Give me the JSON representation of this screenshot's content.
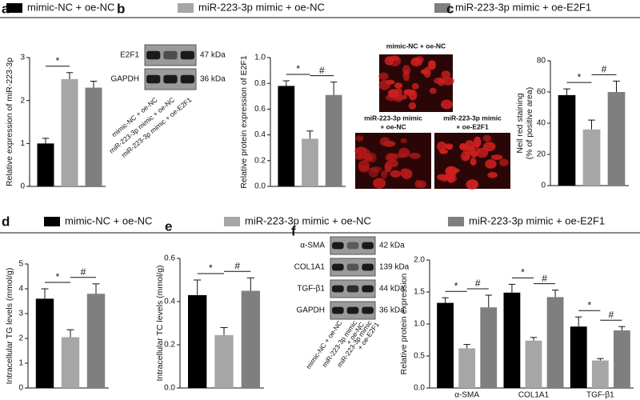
{
  "legends": [
    [
      {
        "name": "mimic-NC + oe-NC",
        "color": "#000000"
      },
      {
        "name": "miR-223-3p mimic + oe-NC",
        "color": "#a6a6a6"
      },
      {
        "name": "miR-223-3p mimic + oe-E2F1",
        "color": "#7f7f7f"
      }
    ],
    [
      {
        "name": "mimic-NC + oe-NC",
        "color": "#000000"
      },
      {
        "name": "miR-223-3p mimic + oe-NC",
        "color": "#a6a6a6"
      },
      {
        "name": "miR-223-3p mimic + oe-E2F1",
        "color": "#7f7f7f"
      }
    ]
  ],
  "blots": [
    {
      "panel": "b",
      "rows": [
        {
          "protein": "E2F1",
          "size": "47 kDa"
        },
        {
          "protein": "GAPDH",
          "size": "36 kDa"
        }
      ],
      "lanes": [
        [
          "mimic-NC + oe-NC"
        ],
        [
          "miR-223-3p mimic + oe-NC"
        ],
        [
          "miR-223-3p mimic + oe-E2F1"
        ]
      ]
    },
    {
      "panel": "f",
      "rows": [
        {
          "protein": "α-SMA",
          "size": "42 kDa"
        },
        {
          "protein": "COL1A1",
          "size": "139 kDa"
        },
        {
          "protein": "TGF-β1",
          "size": "44 kDa"
        },
        {
          "protein": "GAPDH",
          "size": "36 kDa"
        }
      ],
      "lanes": [
        [
          "mimic-NC + oe-NC"
        ],
        [
          "miR-223-3p mimic",
          "+ oe-NC"
        ],
        [
          "miR-223-3p mimic",
          "+ oe-E2F1"
        ]
      ]
    }
  ],
  "micrographs": {
    "panel": "c",
    "images": [
      {
        "caption": [
          "mimic-NC + oe-NC"
        ]
      },
      {
        "caption": [
          "miR-223-3p mimic",
          "+ oe-NC"
        ]
      },
      {
        "caption": [
          "miR-223-3p mimic",
          "+ oe-E2F1"
        ]
      }
    ]
  },
  "chart_data": [
    {
      "type": "bar",
      "panel": "a",
      "ylabel": [
        "Relative expression of miR-223-3p"
      ],
      "values": [
        1.0,
        2.5,
        2.3
      ],
      "errors": [
        0.12,
        0.15,
        0.15
      ],
      "colors": [
        "#000000",
        "#a6a6a6",
        "#7f7f7f"
      ],
      "ylim": [
        0,
        3
      ],
      "yticks": [
        0,
        1,
        2,
        3
      ],
      "annotations": [
        {
          "text": "*",
          "between": [
            0,
            1
          ]
        }
      ]
    },
    {
      "type": "bar",
      "ylabel": [
        "Relative protein expression of E2F1"
      ],
      "values": [
        0.78,
        0.37,
        0.71
      ],
      "errors": [
        0.04,
        0.06,
        0.1
      ],
      "colors": [
        "#000000",
        "#a6a6a6",
        "#7f7f7f"
      ],
      "ylim": [
        0,
        1
      ],
      "yticks": [
        {
          "value": 0,
          "label": "0.0"
        },
        0.2,
        0.4,
        0.6,
        0.8,
        {
          "value": 1,
          "label": "1.0"
        }
      ],
      "annotations": [
        {
          "text": "*",
          "between": [
            0,
            1
          ]
        },
        {
          "text": "#",
          "between": [
            1,
            2
          ]
        }
      ]
    },
    {
      "type": "bar",
      "ylabel": [
        "Neil red staining",
        "(% of positive area)"
      ],
      "values": [
        58,
        36,
        60
      ],
      "errors": [
        4,
        6,
        7
      ],
      "colors": [
        "#000000",
        "#a6a6a6",
        "#7f7f7f"
      ],
      "ylim": [
        0,
        80
      ],
      "yticks": [
        0,
        20,
        40,
        60,
        80
      ],
      "annotations": [
        {
          "text": "*",
          "between": [
            0,
            1
          ]
        },
        {
          "text": "#",
          "between": [
            1,
            2
          ]
        }
      ]
    },
    {
      "type": "bar",
      "panel": "d",
      "ylabel": [
        "Intracellular TG levels (mmol/g)"
      ],
      "values": [
        3.6,
        2.05,
        3.8
      ],
      "errors": [
        0.4,
        0.3,
        0.4
      ],
      "colors": [
        "#000000",
        "#a6a6a6",
        "#7f7f7f"
      ],
      "ylim": [
        0,
        5
      ],
      "yticks": [
        0,
        1,
        2,
        3,
        4,
        5
      ],
      "annotations": [
        {
          "text": "*",
          "between": [
            0,
            1
          ]
        },
        {
          "text": "#",
          "between": [
            1,
            2
          ]
        }
      ]
    },
    {
      "type": "bar",
      "panel": "e",
      "ylabel": [
        "Intracellular TC levels (mmol/g)"
      ],
      "values": [
        0.43,
        0.245,
        0.45
      ],
      "errors": [
        0.07,
        0.035,
        0.06
      ],
      "colors": [
        "#000000",
        "#a6a6a6",
        "#7f7f7f"
      ],
      "ylim": [
        0,
        0.6
      ],
      "yticks": [
        {
          "value": 0,
          "label": "0.0"
        },
        0.2,
        0.4,
        0.6
      ],
      "annotations": [
        {
          "text": "*",
          "between": [
            0,
            1
          ]
        },
        {
          "text": "#",
          "between": [
            1,
            2
          ]
        }
      ]
    },
    {
      "type": "grouped_bar",
      "ylabel": [
        "Relative protein expression"
      ],
      "categories": [
        "α-SMA",
        "COL1A1",
        "TGF-β1"
      ],
      "series": [
        {
          "color": "#000000",
          "values": [
            1.33,
            1.49,
            0.96
          ],
          "errors": [
            0.08,
            0.13,
            0.15
          ]
        },
        {
          "color": "#a6a6a6",
          "values": [
            0.62,
            0.74,
            0.43
          ],
          "errors": [
            0.06,
            0.05,
            0.03
          ]
        },
        {
          "color": "#7f7f7f",
          "values": [
            1.26,
            1.42,
            0.9
          ],
          "errors": [
            0.19,
            0.11,
            0.06
          ]
        }
      ],
      "ylim": [
        0,
        2
      ],
      "yticks": [
        {
          "value": 0,
          "label": "0.0"
        },
        0.5,
        {
          "value": 1,
          "label": "1.0"
        },
        1.5,
        {
          "value": 2,
          "label": "2.0"
        }
      ],
      "annotations": [
        {
          "text": "*",
          "category": 0,
          "between": [
            0,
            1
          ]
        },
        {
          "text": "#",
          "category": 0,
          "between": [
            1,
            2
          ]
        },
        {
          "text": "*",
          "category": 1,
          "between": [
            0,
            1
          ]
        },
        {
          "text": "#",
          "category": 1,
          "between": [
            1,
            2
          ]
        },
        {
          "text": "*",
          "category": 2,
          "between": [
            0,
            1
          ]
        },
        {
          "text": "#",
          "category": 2,
          "between": [
            1,
            2
          ]
        }
      ]
    }
  ]
}
